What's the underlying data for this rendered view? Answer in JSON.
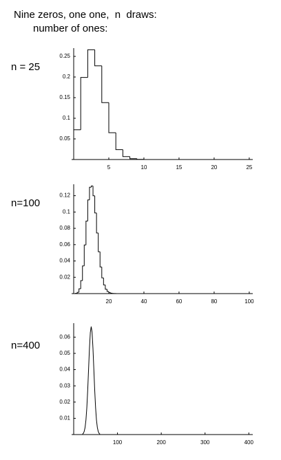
{
  "header": {
    "line1": "Nine zeros, one one,  n  draws:",
    "line2": "number of ones:"
  },
  "chart_data": [
    {
      "type": "histogram",
      "label": "n = 25",
      "color": "#000000",
      "bins": [
        0,
        1,
        2,
        3,
        4,
        5,
        6,
        7,
        8,
        9,
        10,
        11
      ],
      "values": [
        0.072,
        0.199,
        0.266,
        0.227,
        0.138,
        0.065,
        0.024,
        0.007,
        0.002,
        0.0004,
        0.0001
      ],
      "xlim": [
        0,
        25.5
      ],
      "xticks": [
        5,
        10,
        15,
        20,
        25
      ],
      "ylim": [
        0,
        0.27
      ],
      "yticks": [
        0.05,
        0.1,
        0.15,
        0.2,
        0.25
      ]
    },
    {
      "type": "histogram",
      "label": "n=100",
      "color": "#000000",
      "bins": [
        0,
        1,
        2,
        3,
        4,
        5,
        6,
        7,
        8,
        9,
        10,
        11,
        12,
        13,
        14,
        15,
        16,
        17,
        18,
        19,
        20,
        21,
        22,
        23,
        24
      ],
      "values": [
        0.0,
        0.0003,
        0.0016,
        0.0059,
        0.0159,
        0.0339,
        0.0596,
        0.0889,
        0.1148,
        0.1304,
        0.1319,
        0.1199,
        0.0988,
        0.0743,
        0.0513,
        0.0327,
        0.0193,
        0.0106,
        0.0054,
        0.0026,
        0.0012,
        0.0005,
        0.0002,
        0.0001
      ],
      "xlim": [
        0,
        102
      ],
      "xticks": [
        20,
        40,
        60,
        80,
        100
      ],
      "ylim": [
        0,
        0.134
      ],
      "yticks": [
        0.02,
        0.04,
        0.06,
        0.08,
        0.1,
        0.12
      ]
    },
    {
      "type": "line",
      "label": "n=400",
      "color": "#000000",
      "x": [
        20,
        22,
        24,
        26,
        28,
        30,
        32,
        34,
        36,
        38,
        40,
        42,
        44,
        46,
        48,
        50,
        52,
        54,
        56,
        58,
        60
      ],
      "values": [
        0.0003,
        0.0007,
        0.0019,
        0.0044,
        0.009,
        0.0166,
        0.0273,
        0.0403,
        0.0532,
        0.0629,
        0.0665,
        0.0629,
        0.0532,
        0.0403,
        0.0273,
        0.0166,
        0.009,
        0.0044,
        0.0019,
        0.0007,
        0.0003
      ],
      "xlim": [
        0,
        409
      ],
      "xticks": [
        100,
        200,
        300,
        400
      ],
      "ylim": [
        0,
        0.0686
      ],
      "yticks": [
        0.01,
        0.02,
        0.03,
        0.04,
        0.05,
        0.06
      ]
    }
  ]
}
